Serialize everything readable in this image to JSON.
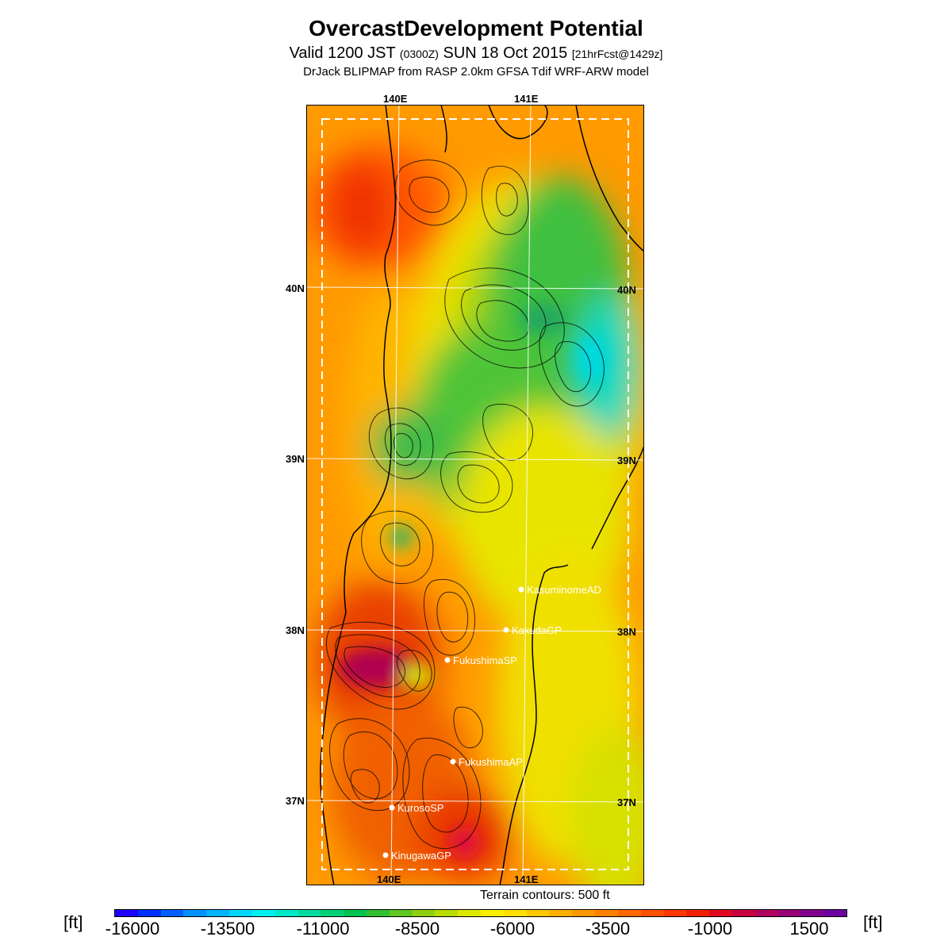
{
  "title": "OvercastDevelopment Potential",
  "subtitle": {
    "part1": "Valid 1200 JST ",
    "part2": "(0300Z)",
    "part3": " SUN 18 Oct 2015 ",
    "part4": "[21hrFcst@1429z]"
  },
  "model_line": "DrJack BLIPMAP from RASP 2.0km GFSA Tdif WRF-ARW model",
  "axes": {
    "lon_top": [
      "140E",
      "141E"
    ],
    "lon_bottom": [
      "140E",
      "141E"
    ],
    "lat_left": [
      "40N",
      "39N",
      "38N",
      "37N"
    ],
    "lat_right": [
      "40N",
      "39N",
      "38N",
      "37N"
    ]
  },
  "locations": [
    {
      "name": "KasuminomeAD"
    },
    {
      "name": "KakudaGP"
    },
    {
      "name": "FukushimaSP"
    },
    {
      "name": "FukushimaAP"
    },
    {
      "name": "KurosoSP"
    },
    {
      "name": "KinugawaGP"
    }
  ],
  "terrain_note": "Terrain contours: 500 ft",
  "colorbar": {
    "unit": "[ft]",
    "ticks": [
      "-16000",
      "-13500",
      "-11000",
      "-8500",
      "-6000",
      "-3500",
      "-1000",
      "1500"
    ],
    "colors": [
      "#1e00ff",
      "#0030ff",
      "#0060ff",
      "#0090ff",
      "#00b4ff",
      "#00d8ff",
      "#00f0f0",
      "#00e8c8",
      "#00dca0",
      "#00d078",
      "#00c450",
      "#30c030",
      "#60c820",
      "#90d010",
      "#b8dc00",
      "#dce800",
      "#f8f000",
      "#ffe000",
      "#ffc800",
      "#ffb000",
      "#ff9800",
      "#ff8000",
      "#ff6800",
      "#ff5000",
      "#ff3800",
      "#f02000",
      "#e00820",
      "#c80040",
      "#b00060",
      "#980078",
      "#800090",
      "#6c00a0"
    ]
  }
}
